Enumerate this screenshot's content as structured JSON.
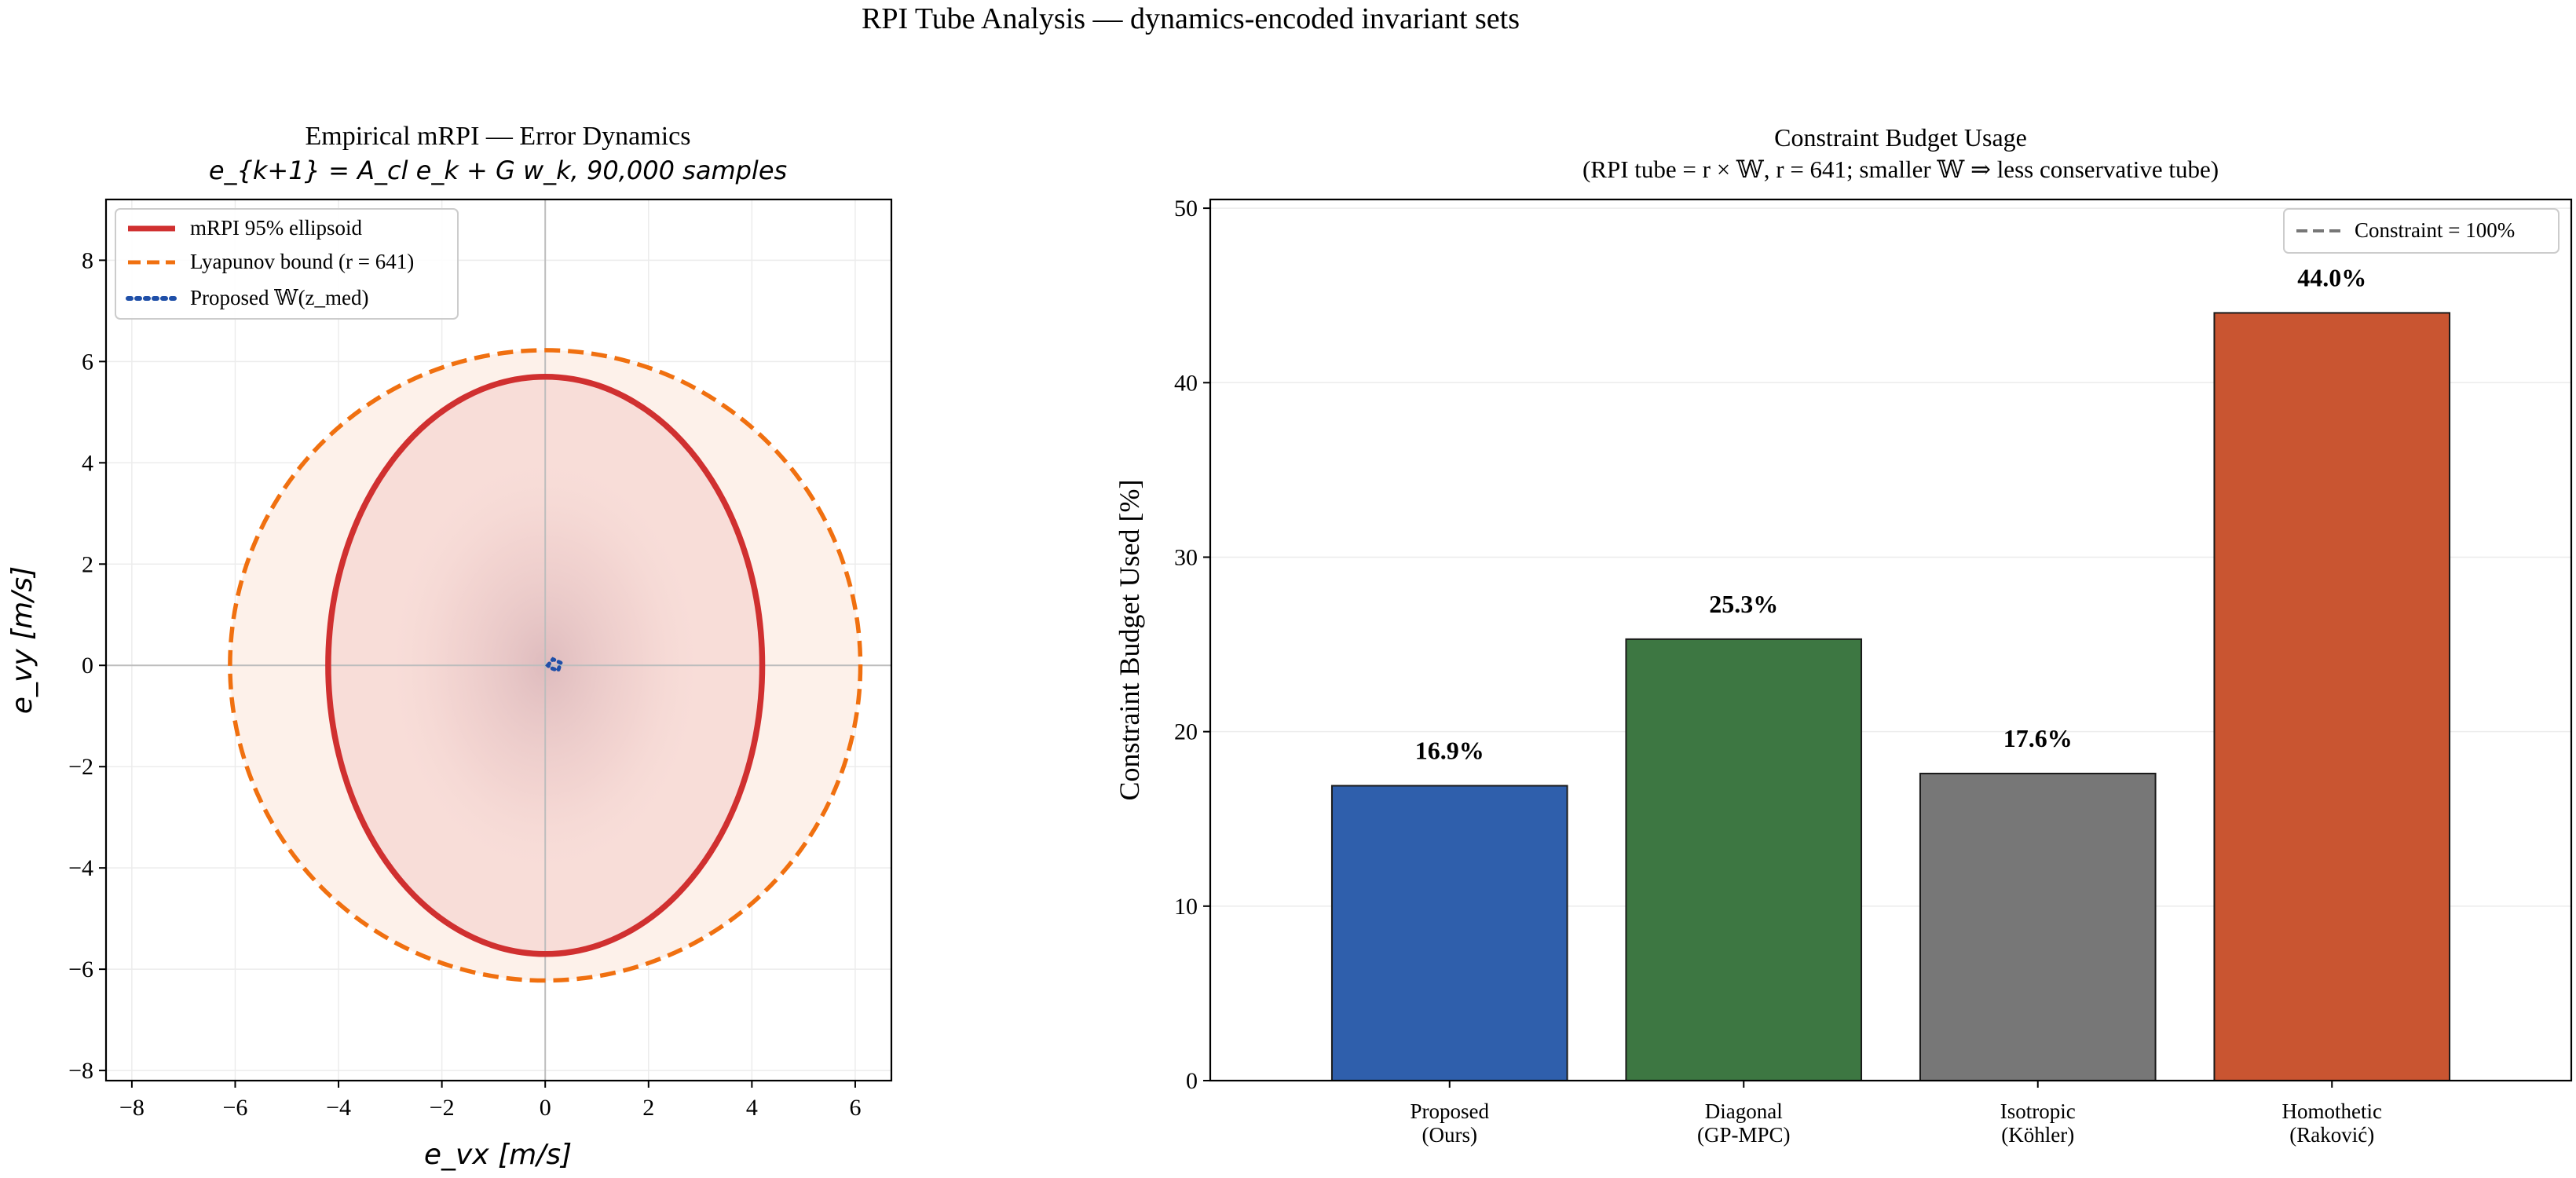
{
  "figure": {
    "suptitle": "RPI Tube Analysis  —  dynamics-encoded invariant sets"
  },
  "left_plot": {
    "title_line1": "Empirical mRPI — Error Dynamics",
    "title_line2": "e_{k+1} = A_cl e_k + G w_k,  90,000 samples",
    "xlabel": "e_vx [m/s]",
    "ylabel": "e_vy [m/s]",
    "legend": [
      {
        "label": "mRPI 95% ellipsoid",
        "color": "#d03030",
        "style": "solid"
      },
      {
        "label": "Lyapunov bound (r = 641)",
        "color": "#f07010",
        "style": "dashed"
      },
      {
        "label": "Proposed 𝕎(z_med)",
        "color": "#1f4fa8",
        "style": "dotted"
      }
    ]
  },
  "right_plot": {
    "title_line1": "Constraint Budget Usage",
    "title_line2": "(RPI tube  = r × 𝕎, r = 641;  smaller 𝕎 ⇒  less conservative tube)",
    "ylabel": "Constraint Budget Used [%]",
    "legend": [
      {
        "label": "Constraint = 100%",
        "color": "#777777",
        "style": "dashed"
      }
    ]
  },
  "chart_data": [
    {
      "type": "scatter",
      "title": "Empirical mRPI — Error Dynamics",
      "subtitle": "e_{k+1} = A_cl e_k + G w_k,  90,000 samples",
      "xlabel": "e_vx [m/s]",
      "ylabel": "e_vy [m/s]",
      "xlim": [
        -8.5,
        6.7
      ],
      "ylim": [
        -8.2,
        9.2
      ],
      "xticks": [
        -8,
        -6,
        -4,
        -2,
        0,
        2,
        4,
        6
      ],
      "yticks": [
        -8,
        -6,
        -4,
        -2,
        0,
        2,
        4,
        6,
        8
      ],
      "grid": true,
      "legend_position": "top-left",
      "series": [
        {
          "name": "mRPI 95% ellipsoid",
          "shape": "ellipse",
          "center": [
            0,
            0
          ],
          "semi_axes": [
            4.2,
            5.7
          ],
          "color": "#d03030"
        },
        {
          "name": "Lyapunov bound (r = 641)",
          "shape": "circle",
          "center": [
            0,
            0
          ],
          "radius": 6.1,
          "color": "#f07010"
        },
        {
          "name": "Proposed 𝕎(z_med)",
          "shape": "small-set",
          "points": [
            [
              0.05,
              0.0
            ],
            [
              0.15,
              0.12
            ],
            [
              0.3,
              0.05
            ],
            [
              0.25,
              -0.1
            ],
            [
              0.1,
              -0.05
            ]
          ],
          "color": "#1f4fa8"
        }
      ],
      "samples": 90000
    },
    {
      "type": "bar",
      "title": "Constraint Budget Usage",
      "subtitle": "(RPI tube  = r × 𝕎, r = 641;  smaller 𝕎 ⇒  less conservative tube)",
      "xlabel": "",
      "ylabel": "Constraint Budget Used [%]",
      "categories": [
        "Proposed\n(Ours)",
        "Diagonal\n(GP-MPC)",
        "Isotropic\n(Köhler)",
        "Homothetic\n(Raković)"
      ],
      "values": [
        16.9,
        25.3,
        17.6,
        44.0
      ],
      "value_labels": [
        "16.9%",
        "25.3%",
        "17.6%",
        "44.0%"
      ],
      "colors": [
        "#2f5fac",
        "#3d7742",
        "#777777",
        "#c95531"
      ],
      "ylim": [
        0,
        50.5
      ],
      "yticks": [
        0,
        10,
        20,
        30,
        40,
        50
      ],
      "grid": true,
      "legend_position": "top-right"
    }
  ]
}
